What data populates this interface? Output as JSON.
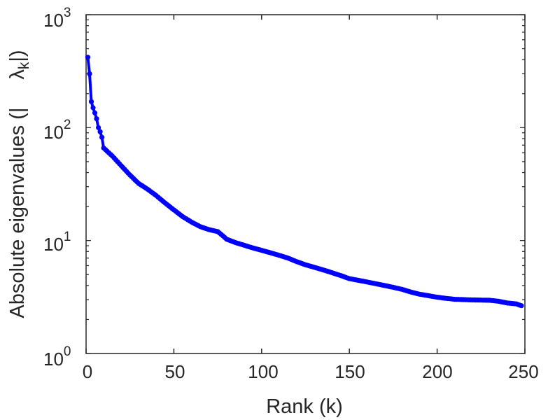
{
  "chart_data": {
    "type": "line",
    "xlabel": "Rank (k)",
    "ylabel": "Absolute eigenvalues (|λk|)",
    "ylabel_parts": {
      "prefix": "Absolute eigenvalues (|",
      "symbol": "λ",
      "subscript": "k",
      "suffix": "|)"
    },
    "xlim": [
      0,
      250
    ],
    "ylim": [
      1,
      1000
    ],
    "yscale": "log",
    "x_ticks": [
      "0",
      "50",
      "100",
      "150",
      "200",
      "250"
    ],
    "y_ticks": [
      {
        "base": "10",
        "exp": "0"
      },
      {
        "base": "10",
        "exp": "1"
      },
      {
        "base": "10",
        "exp": "2"
      },
      {
        "base": "10",
        "exp": "3"
      }
    ],
    "grid": false,
    "marker": "circle",
    "series_color": "#0000ff",
    "anchors": [
      [
        1,
        420
      ],
      [
        2,
        300
      ],
      [
        3,
        170
      ],
      [
        4,
        150
      ],
      [
        5,
        135
      ],
      [
        6,
        120
      ],
      [
        7,
        100
      ],
      [
        8,
        92
      ],
      [
        9,
        82
      ],
      [
        10,
        66
      ],
      [
        15,
        56
      ],
      [
        20,
        46
      ],
      [
        25,
        38
      ],
      [
        30,
        32
      ],
      [
        35,
        28.5
      ],
      [
        40,
        25
      ],
      [
        45,
        21.5
      ],
      [
        50,
        18.7
      ],
      [
        55,
        16.3
      ],
      [
        60,
        14.6
      ],
      [
        65,
        13.3
      ],
      [
        70,
        12.5
      ],
      [
        75,
        12.0
      ],
      [
        78,
        11.0
      ],
      [
        80,
        10.3
      ],
      [
        85,
        9.6
      ],
      [
        90,
        9.1
      ],
      [
        95,
        8.6
      ],
      [
        100,
        8.2
      ],
      [
        105,
        7.8
      ],
      [
        110,
        7.4
      ],
      [
        115,
        7.0
      ],
      [
        120,
        6.5
      ],
      [
        125,
        6.1
      ],
      [
        130,
        5.8
      ],
      [
        135,
        5.5
      ],
      [
        140,
        5.2
      ],
      [
        145,
        4.9
      ],
      [
        150,
        4.6
      ],
      [
        155,
        4.45
      ],
      [
        160,
        4.3
      ],
      [
        165,
        4.15
      ],
      [
        170,
        4.0
      ],
      [
        175,
        3.85
      ],
      [
        180,
        3.7
      ],
      [
        185,
        3.5
      ],
      [
        190,
        3.35
      ],
      [
        195,
        3.25
      ],
      [
        200,
        3.15
      ],
      [
        205,
        3.08
      ],
      [
        210,
        3.02
      ],
      [
        215,
        3.0
      ],
      [
        220,
        2.98
      ],
      [
        225,
        2.97
      ],
      [
        230,
        2.96
      ],
      [
        235,
        2.9
      ],
      [
        240,
        2.8
      ],
      [
        245,
        2.75
      ],
      [
        248,
        2.65
      ]
    ]
  }
}
